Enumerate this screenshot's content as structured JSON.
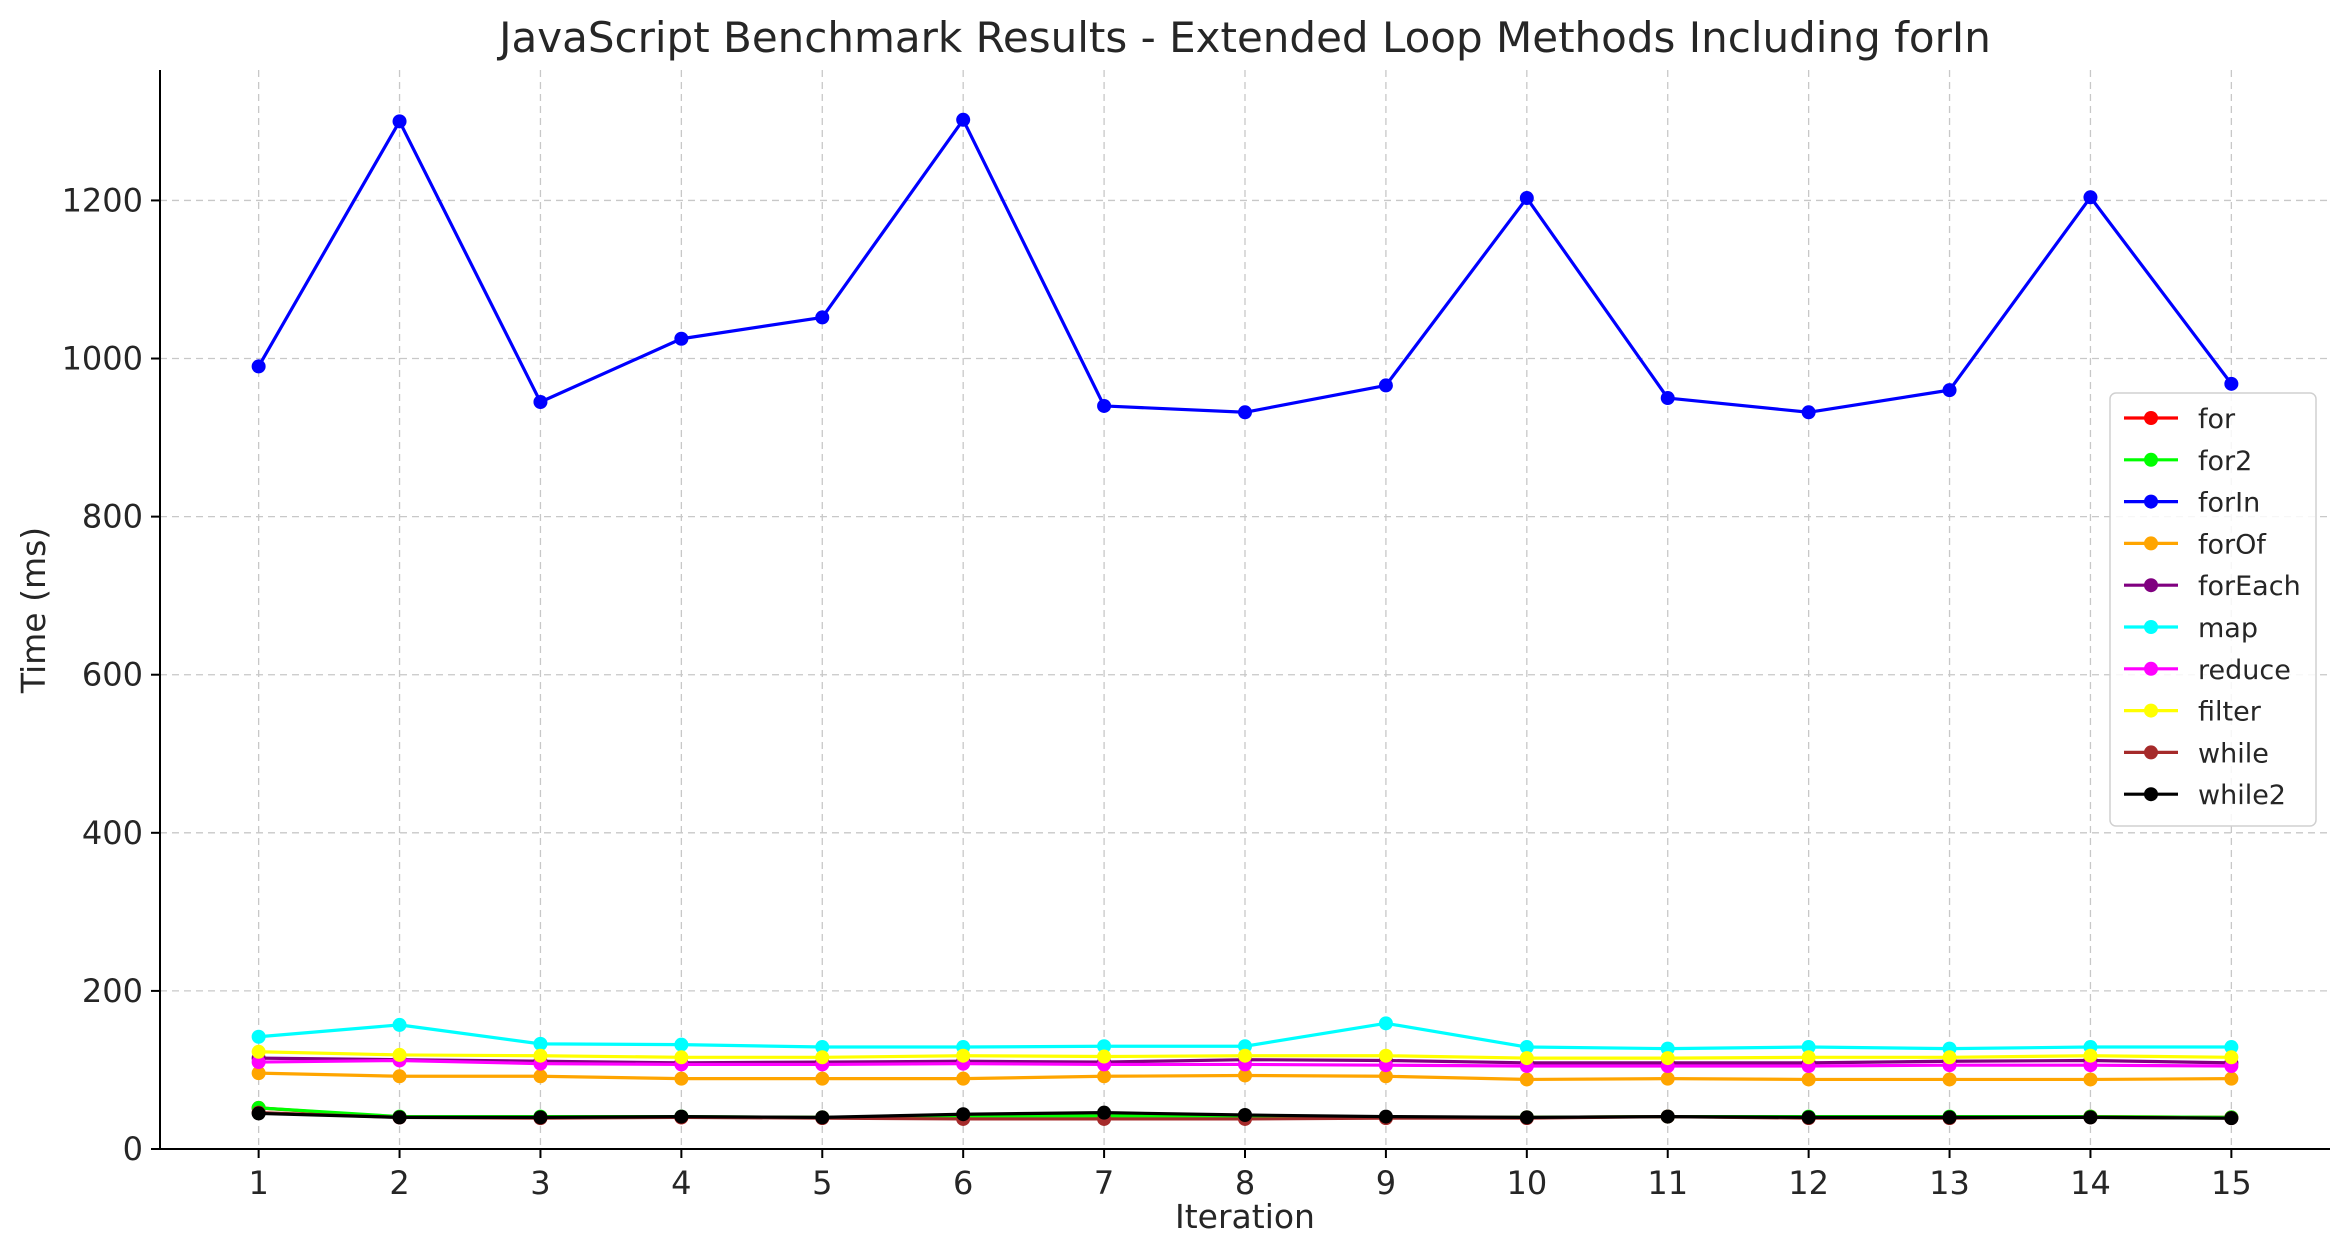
{
  "chart_data": {
    "type": "line",
    "title": "JavaScript Benchmark Results - Extended Loop Methods Including forIn",
    "xlabel": "Iteration",
    "ylabel": "Time (ms)",
    "x": [
      1,
      2,
      3,
      4,
      5,
      6,
      7,
      8,
      9,
      10,
      11,
      12,
      13,
      14,
      15
    ],
    "xlim": [
      0.3,
      15.7
    ],
    "ylim": [
      0,
      1365
    ],
    "yticks": [
      0,
      200,
      400,
      600,
      800,
      1000,
      1200
    ],
    "grid": true,
    "legend_position": "right",
    "series": [
      {
        "name": "for",
        "color": "#ff0000",
        "values": [
          52,
          40,
          40,
          40,
          40,
          40,
          42,
          40,
          40,
          40,
          41,
          40,
          40,
          41,
          40
        ]
      },
      {
        "name": "for2",
        "color": "#00ff00",
        "values": [
          52,
          41,
          41,
          41,
          40,
          41,
          42,
          41,
          40,
          40,
          41,
          41,
          41,
          41,
          40
        ]
      },
      {
        "name": "forIn",
        "color": "#0000ff",
        "values": [
          990,
          1300,
          945,
          1025,
          1052,
          1302,
          940,
          932,
          966,
          1203,
          950,
          932,
          960,
          1204,
          968
        ]
      },
      {
        "name": "forOf",
        "color": "#ffa500",
        "values": [
          96,
          92,
          92,
          89,
          89,
          89,
          92,
          93,
          92,
          88,
          89,
          88,
          88,
          88,
          89
        ]
      },
      {
        "name": "forEach",
        "color": "#800080",
        "values": [
          115,
          113,
          111,
          109,
          110,
          111,
          110,
          113,
          112,
          109,
          109,
          109,
          111,
          112,
          109
        ]
      },
      {
        "name": "map",
        "color": "#00ffff",
        "values": [
          142,
          157,
          133,
          132,
          129,
          129,
          130,
          130,
          159,
          129,
          127,
          129,
          127,
          129,
          129
        ]
      },
      {
        "name": "reduce",
        "color": "#ff00ff",
        "values": [
          110,
          112,
          108,
          107,
          107,
          108,
          107,
          107,
          106,
          105,
          105,
          105,
          106,
          106,
          105
        ]
      },
      {
        "name": "filter",
        "color": "#ffff00",
        "values": [
          123,
          119,
          118,
          116,
          116,
          118,
          117,
          118,
          118,
          115,
          115,
          116,
          116,
          118,
          116
        ]
      },
      {
        "name": "while",
        "color": "#a52a2a",
        "values": [
          46,
          40,
          39,
          40,
          39,
          38,
          38,
          38,
          39,
          39,
          41,
          39,
          39,
          40,
          39
        ]
      },
      {
        "name": "while2",
        "color": "#000000",
        "values": [
          45,
          40,
          40,
          41,
          40,
          44,
          46,
          43,
          41,
          40,
          41,
          40,
          40,
          40,
          39
        ]
      }
    ]
  }
}
